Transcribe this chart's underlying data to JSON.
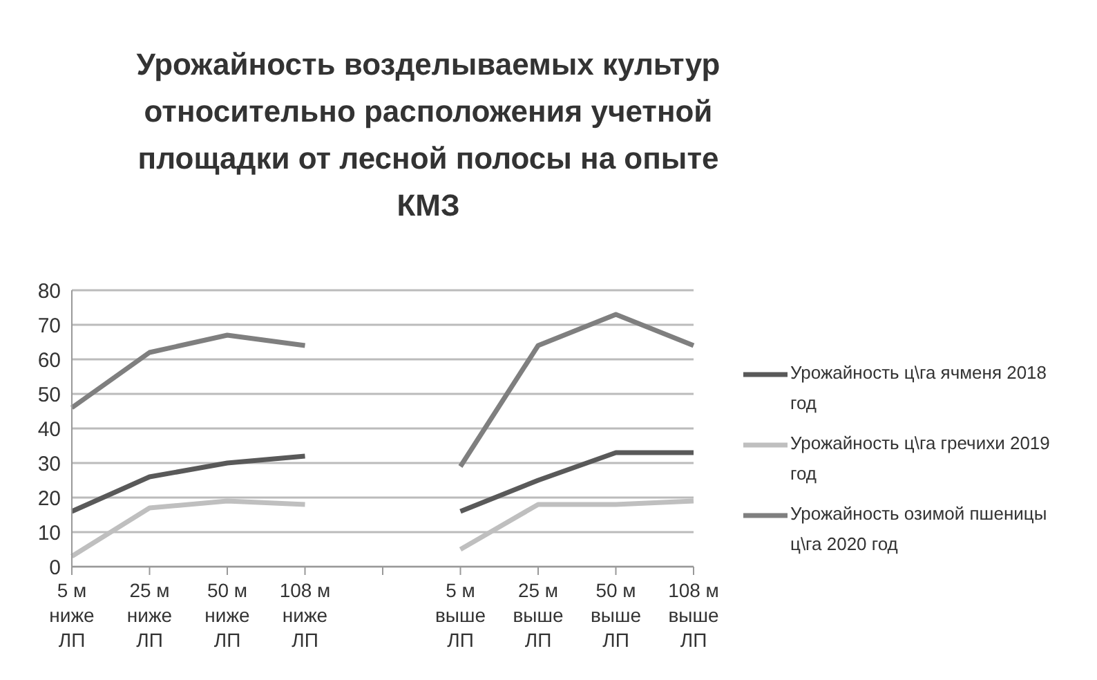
{
  "chart_data": {
    "type": "line",
    "title": "Урожайность возделываемых  культур относительно расположения учетной площадки от лесной полосы на опыте КМЗ",
    "categories": [
      "5 м ниже ЛП",
      "25 м ниже ЛП",
      "50 м ниже ЛП",
      "108 м ниже ЛП",
      null,
      "5 м выше ЛП",
      "25 м выше ЛП",
      "50 м выше ЛП",
      "108 м выше ЛП"
    ],
    "series": [
      {
        "name": "Урожайность ц\\га ячменя 2018 год",
        "color": "#595959",
        "values": [
          16,
          26,
          30,
          32,
          null,
          16,
          25,
          33,
          33
        ]
      },
      {
        "name": "Урожайность ц\\га гречихи 2019 год",
        "color": "#bfbfbf",
        "values": [
          3,
          17,
          19,
          18,
          null,
          5,
          18,
          18,
          19
        ]
      },
      {
        "name": "Урожайность озимой пшеницы ц\\га 2020 год",
        "color": "#7f7f7f",
        "values": [
          46,
          62,
          67,
          64,
          null,
          29,
          64,
          73,
          64
        ]
      }
    ],
    "ylim": [
      0,
      80
    ],
    "yticks": [
      0,
      10,
      20,
      30,
      40,
      50,
      60,
      70,
      80
    ],
    "grid": "y",
    "legend": "right",
    "marker": "none",
    "line_style": "solid"
  }
}
